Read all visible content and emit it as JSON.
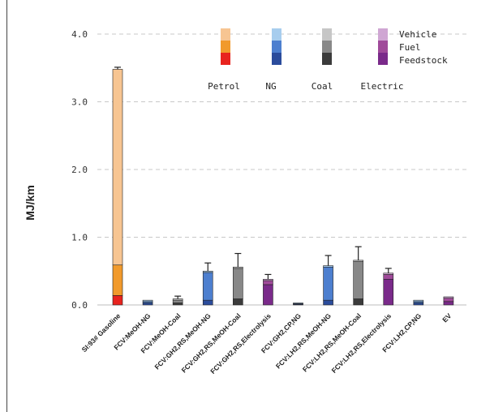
{
  "chart_data": {
    "type": "bar",
    "stacked": true,
    "ylabel": "MJ/km",
    "ylim": [
      0,
      4.0
    ],
    "yticks": [
      "0.0",
      "1.0",
      "2.0",
      "3.0",
      "4.0"
    ],
    "grid": "horizontal-dashed",
    "categories": [
      "SI:93# Gasoline",
      "FCV:MeOH-NG",
      "FCV:MeOH-Coal",
      "FCV:GH2,RS,MeOH-NG",
      "FCV:GH2,RS,MeOH-Coal",
      "FCV:GH2,RS,Electrolysis",
      "FCV:GH2,CP,NG",
      "FCV:LH2,RS,MeOH-NG",
      "FCV:LH2,RS,MeOH-Coal",
      "FCV:LH2,RS,Electrolysis",
      "FCV:LH2,CP,NG",
      "EV"
    ],
    "pathway": [
      "Petrol",
      "NG",
      "Coal",
      "NG",
      "Coal",
      "Electric",
      "NG",
      "NG",
      "Coal",
      "Electric",
      "NG",
      "Electric"
    ],
    "series": [
      {
        "name": "Feedstock",
        "values": [
          0.14,
          0.03,
          0.03,
          0.07,
          0.09,
          0.3,
          0.01,
          0.07,
          0.09,
          0.38,
          0.03,
          0.05
        ]
      },
      {
        "name": "Fuel",
        "values": [
          0.45,
          0.02,
          0.04,
          0.41,
          0.45,
          0.06,
          0.01,
          0.49,
          0.55,
          0.07,
          0.02,
          0.05
        ]
      },
      {
        "name": "Vehicle",
        "values": [
          2.89,
          0.02,
          0.02,
          0.02,
          0.02,
          0.02,
          0.01,
          0.02,
          0.02,
          0.02,
          0.02,
          0.02
        ]
      }
    ],
    "error_bars": [
      0.03,
      0.0,
      0.04,
      0.12,
      0.2,
      0.07,
      0.0,
      0.15,
      0.2,
      0.07,
      0.0,
      0.0
    ],
    "legend": {
      "position": "top-right",
      "pathways": [
        "Petrol",
        "NG",
        "Coal",
        "Electric"
      ],
      "stages": [
        "Vehicle",
        "Fuel",
        "Feedstock"
      ]
    },
    "colors": {
      "Petrol": [
        "#e8231e",
        "#f19a2c",
        "#f7c592"
      ],
      "NG": [
        "#2b4c9c",
        "#4d7fcf",
        "#a7cdee"
      ],
      "Coal": [
        "#3b3b3b",
        "#888888",
        "#c6c6c6"
      ],
      "Electric": [
        "#7a2a8a",
        "#a04a9a",
        "#cfa6d3"
      ]
    }
  }
}
